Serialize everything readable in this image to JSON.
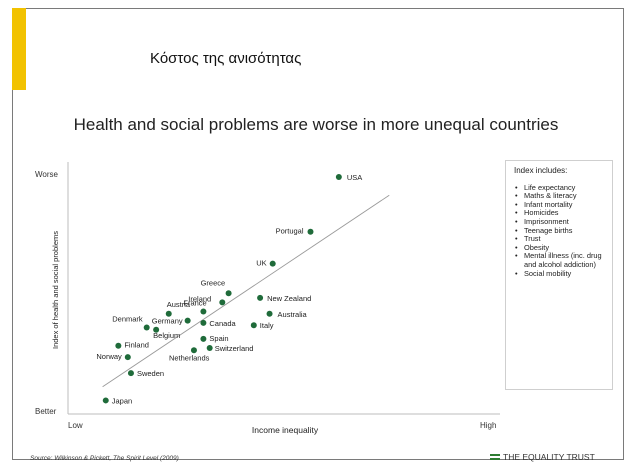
{
  "slide": {
    "title": "Κόστος της ανισότητας",
    "subtitle": "Health and social problems are worse in more unequal countries",
    "source": "Source: Wilkinson & Pickett, The Spirit Level (2009)",
    "brand": "THE EQUALITY TRUST",
    "accent_color": "#f2c200",
    "brand_color": "#2e7d32"
  },
  "index_box": {
    "heading": "Index includes:",
    "items": [
      "Life expectancy",
      "Maths & literacy",
      "Infant mortality",
      "Homicides",
      "Imprisonment",
      "Teenage births",
      "Trust",
      "Obesity",
      "Mental illness (inc. drug and alcohol addiction)",
      "Social mobility"
    ]
  },
  "chart_data": {
    "type": "scatter",
    "title": "",
    "xlabel": "Income inequality",
    "ylabel": "Index of health and social problems",
    "x_tick_labels": [
      "Low",
      "High"
    ],
    "y_tick_labels": [
      "Better",
      "Worse"
    ],
    "xlim": [
      0,
      100
    ],
    "ylim": [
      0,
      100
    ],
    "grid": false,
    "point_color": "#1f6b3a",
    "trend_line": [
      [
        4,
        8
      ],
      [
        95,
        92
      ]
    ],
    "points": [
      {
        "label": "Japan",
        "x": 5,
        "y": 2
      },
      {
        "label": "Sweden",
        "x": 13,
        "y": 14
      },
      {
        "label": "Norway",
        "x": 12,
        "y": 21
      },
      {
        "label": "Finland",
        "x": 9,
        "y": 26
      },
      {
        "label": "Denmark",
        "x": 18,
        "y": 34
      },
      {
        "label": "Belgium",
        "x": 21,
        "y": 33
      },
      {
        "label": "Austria",
        "x": 25,
        "y": 40
      },
      {
        "label": "Germany",
        "x": 31,
        "y": 37
      },
      {
        "label": "Netherlands",
        "x": 33,
        "y": 24
      },
      {
        "label": "Spain",
        "x": 36,
        "y": 29
      },
      {
        "label": "Switzerland",
        "x": 38,
        "y": 25
      },
      {
        "label": "France",
        "x": 36,
        "y": 41
      },
      {
        "label": "Canada",
        "x": 36,
        "y": 36
      },
      {
        "label": "Ireland",
        "x": 42,
        "y": 45
      },
      {
        "label": "Greece",
        "x": 44,
        "y": 49
      },
      {
        "label": "Italy",
        "x": 52,
        "y": 35
      },
      {
        "label": "New Zealand",
        "x": 54,
        "y": 47
      },
      {
        "label": "Australia",
        "x": 57,
        "y": 40
      },
      {
        "label": "UK",
        "x": 58,
        "y": 62
      },
      {
        "label": "Portugal",
        "x": 70,
        "y": 76
      },
      {
        "label": "USA",
        "x": 79,
        "y": 100
      }
    ]
  }
}
